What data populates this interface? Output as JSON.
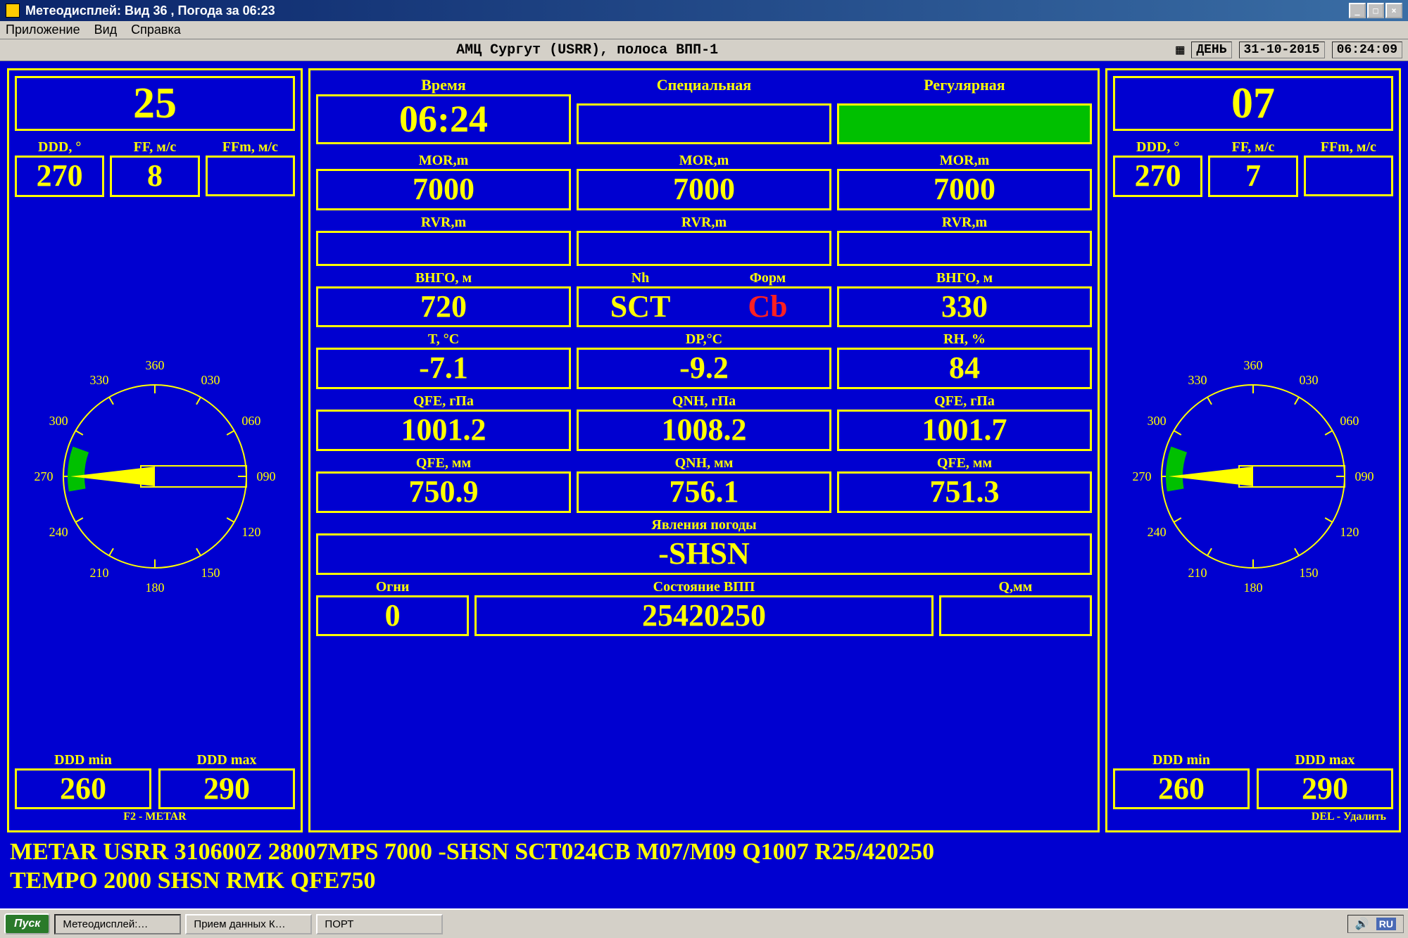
{
  "window": {
    "title": "Метеодисплей: Вид 36 , Погода за 06:23"
  },
  "menu": {
    "app": "Приложение",
    "view": "Вид",
    "help": "Справка"
  },
  "status_top": {
    "station": "АМЦ  Сургут (USRR),  полоса ВПП-1",
    "day_label": "ДЕНЬ",
    "date": "31-10-2015",
    "time": "06:24:09"
  },
  "colors": {
    "bg": "#0000d0",
    "fg": "#ffff00",
    "accent_red": "#ff2020",
    "accent_green": "#00c000"
  },
  "left": {
    "runway": "25",
    "ddd_label": "DDD, °",
    "ff_label": "FF, м/с",
    "ffm_label": "FFm, м/с",
    "ddd": "270",
    "ff": "8",
    "ffm": "",
    "compass": {
      "ticks": [
        "360",
        "030",
        "060",
        "090",
        "120",
        "150",
        "180",
        "210",
        "240",
        "270",
        "300",
        "330"
      ],
      "arrow_deg": 270,
      "arrow_color": "#ffff00",
      "sector_start": 260,
      "sector_end": 290,
      "sector_color": "#00c000"
    },
    "ddd_min_label": "DDD min",
    "ddd_max_label": "DDD max",
    "ddd_min": "260",
    "ddd_max": "290",
    "f2_hint": "F2 - METAR"
  },
  "right": {
    "runway": "07",
    "ddd_label": "DDD, °",
    "ff_label": "FF, м/с",
    "ffm_label": "FFm, м/с",
    "ddd": "270",
    "ff": "7",
    "ffm": "",
    "compass": {
      "ticks": [
        "360",
        "030",
        "060",
        "090",
        "120",
        "150",
        "180",
        "210",
        "240",
        "270",
        "300",
        "330"
      ],
      "arrow_deg": 270,
      "arrow_color": "#ffff00",
      "sector_start": 260,
      "sector_end": 290,
      "sector_color": "#00c000"
    },
    "ddd_min_label": "DDD min",
    "ddd_max_label": "DDD max",
    "ddd_min": "260",
    "ddd_max": "290",
    "del_hint": "DEL - Удалить"
  },
  "center": {
    "time_label": "Время",
    "special_label": "Специальная",
    "regular_label": "Регулярная",
    "time": "06:24",
    "special": "",
    "regular": "",
    "mor_label": "MOR,m",
    "mor": [
      "7000",
      "7000",
      "7000"
    ],
    "rvr_label": "RVR,m",
    "rvr": [
      "",
      "",
      ""
    ],
    "vngo_label": "ВНГО, м",
    "nh_label": "Nh",
    "form_label": "Форм",
    "vngo1": "720",
    "nh": "SCT",
    "form": "Cb",
    "vngo2": "330",
    "t_label": "T, °C",
    "dp_label": "DP,°C",
    "rh_label": "RH, %",
    "t": "-7.1",
    "dp": "-9.2",
    "rh": "84",
    "qfe_hpa_label": "QFE, гПа",
    "qnh_hpa_label": "QNH, гПа",
    "qfe2_hpa_label": "QFE, гПа",
    "qfe_hpa": "1001.2",
    "qnh_hpa": "1008.2",
    "qfe2_hpa": "1001.7",
    "qfe_mm_label": "QFE, мм",
    "qnh_mm_label": "QNH, мм",
    "qfe2_mm_label": "QFE, мм",
    "qfe_mm": "750.9",
    "qnh_mm": "756.1",
    "qfe2_mm": "751.3",
    "wx_label": "Явления погоды",
    "wx": "-SHSN",
    "ogni_label": "Огни",
    "rwycond_label": "Состояние ВПП",
    "q_label": "Q,мм",
    "ogni": "0",
    "rwycond": "25420250",
    "q": ""
  },
  "metar": {
    "line1": "METAR USRR 310600Z 28007MPS 7000 -SHSN SCT024CB M07/M09 Q1007 R25/420250",
    "line2": "TEMPO 2000 SHSN RMK QFE750"
  },
  "taskbar": {
    "start": "Пуск",
    "tasks": [
      "Метеодисплей:…",
      "Прием данных К…",
      "ПОРТ"
    ],
    "lang": "RU"
  }
}
